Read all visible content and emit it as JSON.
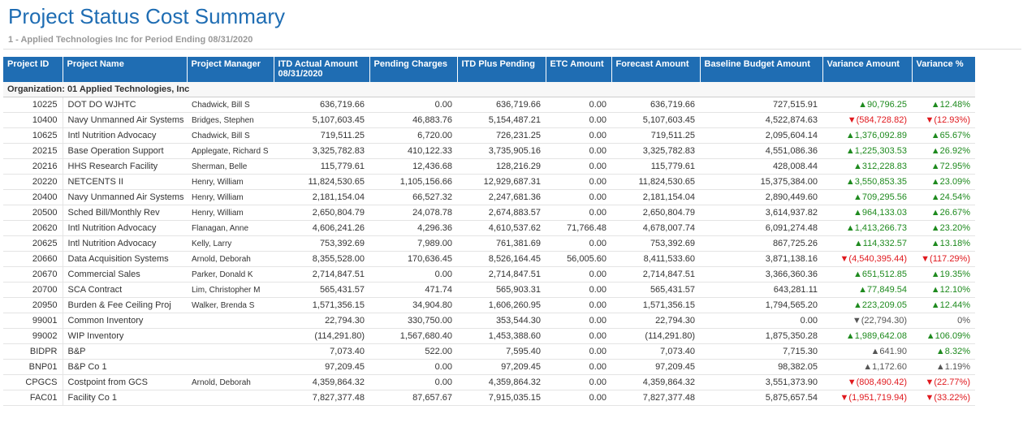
{
  "header": {
    "title": "Project Status Cost Summary",
    "subtitle": "1 - Applied Technologies Inc for Period Ending 08/31/2020"
  },
  "table": {
    "columns": [
      "Project ID",
      "Project Name",
      "Project Manager",
      "ITD Actual Amount 08/31/2020",
      "Pending Charges",
      "ITD Plus Pending",
      "ETC Amount",
      "Forecast Amount",
      "Baseline Budget Amount",
      "Variance Amount",
      "Variance %"
    ],
    "group": "Organization: 01 Applied Technologies, Inc",
    "rows": [
      {
        "cells": [
          "10225",
          "DOT DO WJHTC",
          "Chadwick, Bill S",
          "636,719.66",
          "0.00",
          "636,719.66",
          "0.00",
          "636,719.66",
          "727,515.91",
          "▲90,796.25",
          "▲12.48%"
        ],
        "variance_colors": [
          "#1e8a1e",
          "#1e8a1e"
        ]
      },
      {
        "cells": [
          "10400",
          "Navy Unmanned Air Systems",
          "Bridges, Stephen",
          "5,107,603.45",
          "46,883.76",
          "5,154,487.21",
          "0.00",
          "5,107,603.45",
          "4,522,874.63",
          "▼(584,728.82)",
          "▼(12.93%)"
        ],
        "variance_colors": [
          "#e0191e",
          "#e0191e"
        ]
      },
      {
        "cells": [
          "10625",
          "Intl Nutrition Advocacy",
          "Chadwick, Bill S",
          "719,511.25",
          "6,720.00",
          "726,231.25",
          "0.00",
          "719,511.25",
          "2,095,604.14",
          "▲1,376,092.89",
          "▲65.67%"
        ],
        "variance_colors": [
          "#1e8a1e",
          "#1e8a1e"
        ]
      },
      {
        "cells": [
          "20215",
          "Base Operation Support",
          "Applegate, Richard S",
          "3,325,782.83",
          "410,122.33",
          "3,735,905.16",
          "0.00",
          "3,325,782.83",
          "4,551,086.36",
          "▲1,225,303.53",
          "▲26.92%"
        ],
        "variance_colors": [
          "#1e8a1e",
          "#1e8a1e"
        ]
      },
      {
        "cells": [
          "20216",
          "HHS Research Facility",
          "Sherman, Belle",
          "115,779.61",
          "12,436.68",
          "128,216.29",
          "0.00",
          "115,779.61",
          "428,008.44",
          "▲312,228.83",
          "▲72.95%"
        ],
        "variance_colors": [
          "#1e8a1e",
          "#1e8a1e"
        ]
      },
      {
        "cells": [
          "20220",
          "NETCENTS II",
          "Henry, William",
          "11,824,530.65",
          "1,105,156.66",
          "12,929,687.31",
          "0.00",
          "11,824,530.65",
          "15,375,384.00",
          "▲3,550,853.35",
          "▲23.09%"
        ],
        "variance_colors": [
          "#1e8a1e",
          "#1e8a1e"
        ]
      },
      {
        "cells": [
          "20400",
          "Navy Unmanned Air Systems",
          "Henry, William",
          "2,181,154.04",
          "66,527.32",
          "2,247,681.36",
          "0.00",
          "2,181,154.04",
          "2,890,449.60",
          "▲709,295.56",
          "▲24.54%"
        ],
        "variance_colors": [
          "#1e8a1e",
          "#1e8a1e"
        ]
      },
      {
        "cells": [
          "20500",
          "Sched Bill/Monthly Rev",
          "Henry, William",
          "2,650,804.79",
          "24,078.78",
          "2,674,883.57",
          "0.00",
          "2,650,804.79",
          "3,614,937.82",
          "▲964,133.03",
          "▲26.67%"
        ],
        "variance_colors": [
          "#1e8a1e",
          "#1e8a1e"
        ]
      },
      {
        "cells": [
          "20620",
          "Intl Nutrition Advocacy",
          "Flanagan, Anne",
          "4,606,241.26",
          "4,296.36",
          "4,610,537.62",
          "71,766.48",
          "4,678,007.74",
          "6,091,274.48",
          "▲1,413,266.73",
          "▲23.20%"
        ],
        "variance_colors": [
          "#1e8a1e",
          "#1e8a1e"
        ]
      },
      {
        "cells": [
          "20625",
          "Intl Nutrition Advocacy",
          "Kelly, Larry",
          "753,392.69",
          "7,989.00",
          "761,381.69",
          "0.00",
          "753,392.69",
          "867,725.26",
          "▲114,332.57",
          "▲13.18%"
        ],
        "variance_colors": [
          "#1e8a1e",
          "#1e8a1e"
        ]
      },
      {
        "cells": [
          "20660",
          "Data Acquisition Systems",
          "Arnold, Deborah",
          "8,355,528.00",
          "170,636.45",
          "8,526,164.45",
          "56,005.60",
          "8,411,533.60",
          "3,871,138.16",
          "▼(4,540,395.44)",
          "▼(117.29%)"
        ],
        "variance_colors": [
          "#e0191e",
          "#e0191e"
        ]
      },
      {
        "cells": [
          "20670",
          "Commercial Sales",
          "Parker, Donald K",
          "2,714,847.51",
          "0.00",
          "2,714,847.51",
          "0.00",
          "2,714,847.51",
          "3,366,360.36",
          "▲651,512.85",
          "▲19.35%"
        ],
        "variance_colors": [
          "#1e8a1e",
          "#1e8a1e"
        ]
      },
      {
        "cells": [
          "20700",
          "SCA Contract",
          "Lim, Christopher M",
          "565,431.57",
          "471.74",
          "565,903.31",
          "0.00",
          "565,431.57",
          "643,281.11",
          "▲77,849.54",
          "▲12.10%"
        ],
        "variance_colors": [
          "#1e8a1e",
          "#1e8a1e"
        ]
      },
      {
        "cells": [
          "20950",
          "Burden & Fee Ceiling Proj",
          "Walker, Brenda S",
          "1,571,356.15",
          "34,904.80",
          "1,606,260.95",
          "0.00",
          "1,571,356.15",
          "1,794,565.20",
          "▲223,209.05",
          "▲12.44%"
        ],
        "variance_colors": [
          "#1e8a1e",
          "#1e8a1e"
        ]
      },
      {
        "cells": [
          "99001",
          "Common Inventory",
          null,
          "22,794.30",
          "330,750.00",
          "353,544.30",
          "0.00",
          "22,794.30",
          "0.00",
          "▼(22,794.30)",
          "0%"
        ],
        "variance_colors": [
          "#555555",
          "#555555"
        ]
      },
      {
        "cells": [
          "99002",
          "WIP Inventory",
          null,
          "(114,291.80)",
          "1,567,680.40",
          "1,453,388.60",
          "0.00",
          "(114,291.80)",
          "1,875,350.28",
          "▲1,989,642.08",
          "▲106.09%"
        ],
        "variance_colors": [
          "#1e8a1e",
          "#1e8a1e"
        ]
      },
      {
        "cells": [
          "BIDPR",
          "B&P",
          null,
          "7,073.40",
          "522.00",
          "7,595.40",
          "0.00",
          "7,073.40",
          "7,715.30",
          "▲641.90",
          "▲8.32%"
        ],
        "variance_colors": [
          "#555555",
          "#1e8a1e"
        ]
      },
      {
        "cells": [
          "BNP01",
          "B&P Co 1",
          null,
          "97,209.45",
          "0.00",
          "97,209.45",
          "0.00",
          "97,209.45",
          "98,382.05",
          "▲1,172.60",
          "▲1.19%"
        ],
        "variance_colors": [
          "#555555",
          "#555555"
        ]
      },
      {
        "cells": [
          "CPGCS",
          "Costpoint from GCS",
          "Arnold, Deborah",
          "4,359,864.32",
          "0.00",
          "4,359,864.32",
          "0.00",
          "4,359,864.32",
          "3,551,373.90",
          "▼(808,490.42)",
          "▼(22.77%)"
        ],
        "variance_colors": [
          "#e0191e",
          "#e0191e"
        ]
      },
      {
        "cells": [
          "FAC01",
          "Facility Co 1",
          null,
          "7,827,377.48",
          "87,657.67",
          "7,915,035.15",
          "0.00",
          "7,827,377.48",
          "5,875,657.54",
          "▼(1,951,719.94)",
          "▼(33.22%)"
        ],
        "variance_colors": [
          "#e0191e",
          "#e0191e"
        ]
      }
    ]
  }
}
